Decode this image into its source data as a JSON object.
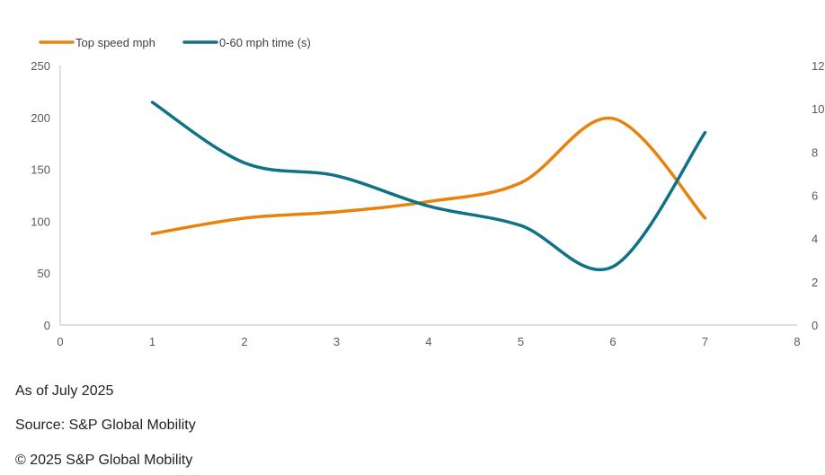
{
  "chart_data": {
    "type": "line",
    "title": "",
    "xlabel": "",
    "ylabel": "",
    "xlim": [
      0,
      8
    ],
    "ylim": [
      0,
      250
    ],
    "y2lim": [
      0,
      12
    ],
    "x_ticks": [
      "0",
      "1",
      "2",
      "3",
      "4",
      "5",
      "6",
      "7",
      "8"
    ],
    "y_ticks": [
      "0",
      "50",
      "100",
      "150",
      "200",
      "250"
    ],
    "y2_ticks": [
      "0",
      "2",
      "4",
      "6",
      "8",
      "10",
      "12"
    ],
    "grid": false,
    "legend_position": "top-left",
    "series": [
      {
        "name": "Top speed mph",
        "axis": "left",
        "color": "#E8820C",
        "x": [
          1,
          2,
          3,
          4,
          5,
          6,
          7
        ],
        "values": [
          88,
          103,
          109,
          119,
          137,
          199,
          103
        ]
      },
      {
        "name": "0-60 mph time (s)",
        "axis": "right",
        "color": "#0F7287",
        "x": [
          1,
          2,
          3,
          4,
          5,
          6,
          7
        ],
        "values": [
          10.3,
          7.5,
          6.9,
          5.5,
          4.6,
          2.7,
          8.9
        ]
      }
    ]
  },
  "notes": {
    "as_of": "As of July 2025",
    "source": "Source: S&P Global Mobility",
    "copyright": "© 2025 S&P Global Mobility"
  }
}
